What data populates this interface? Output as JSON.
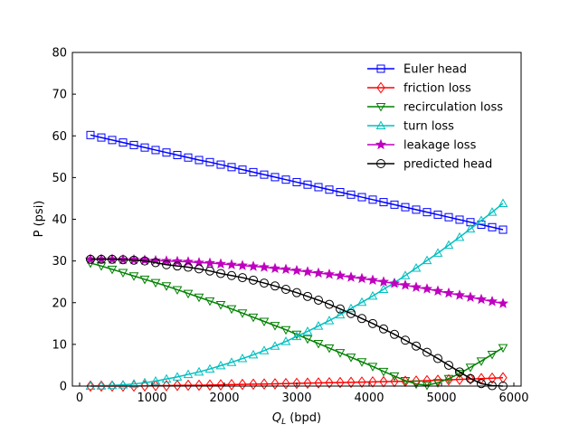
{
  "chart_data": {
    "type": "line",
    "xlabel_main": "Q",
    "xlabel_sub": "L",
    "xlabel_unit": " (bpd)",
    "ylabel": "P (psi)",
    "xlim": [
      -100,
      6100
    ],
    "ylim": [
      0,
      80
    ],
    "xticks": [
      0,
      1000,
      2000,
      3000,
      4000,
      5000,
      6000
    ],
    "yticks": [
      0,
      10,
      20,
      30,
      40,
      50,
      60,
      70,
      80
    ],
    "grid": false,
    "legend_position": "upper-right",
    "x": [
      150,
      300,
      450,
      600,
      750,
      900,
      1050,
      1200,
      1350,
      1500,
      1650,
      1800,
      1950,
      2100,
      2250,
      2400,
      2550,
      2700,
      2850,
      3000,
      3150,
      3300,
      3450,
      3600,
      3750,
      3900,
      4050,
      4200,
      4350,
      4500,
      4650,
      4800,
      4950,
      5100,
      5250,
      5400,
      5550,
      5700,
      5850
    ],
    "series": [
      {
        "name": "Euler head",
        "color": "#0000ff",
        "marker": "square",
        "values": [
          60.2,
          59.6,
          59.0,
          58.4,
          57.8,
          57.2,
          56.6,
          56.0,
          55.4,
          54.8,
          54.2,
          53.7,
          53.1,
          52.5,
          51.9,
          51.3,
          50.7,
          50.1,
          49.5,
          48.9,
          48.3,
          47.7,
          47.1,
          46.5,
          45.9,
          45.3,
          44.7,
          44.1,
          43.5,
          42.9,
          42.3,
          41.7,
          41.1,
          40.5,
          39.9,
          39.3,
          38.7,
          38.1,
          37.5
        ]
      },
      {
        "name": "friction loss",
        "color": "#ff0000",
        "marker": "diamond",
        "values": [
          0.0,
          0.0,
          0.0,
          0.0,
          0.0,
          0.05,
          0.1,
          0.1,
          0.15,
          0.2,
          0.2,
          0.25,
          0.3,
          0.35,
          0.4,
          0.45,
          0.5,
          0.55,
          0.6,
          0.65,
          0.7,
          0.75,
          0.8,
          0.85,
          0.9,
          0.95,
          1.0,
          1.05,
          1.1,
          1.15,
          1.2,
          1.3,
          1.4,
          1.5,
          1.6,
          1.7,
          1.8,
          1.9,
          2.0
        ]
      },
      {
        "name": "recirculation loss",
        "color": "#008000",
        "marker": "triangle-down",
        "values": [
          29.5,
          28.8,
          28.0,
          27.2,
          26.4,
          25.6,
          24.8,
          24.0,
          23.1,
          22.2,
          21.3,
          20.4,
          19.5,
          18.5,
          17.5,
          16.5,
          15.5,
          14.5,
          13.5,
          12.4,
          11.3,
          10.2,
          9.1,
          8.0,
          6.9,
          5.8,
          4.7,
          3.5,
          2.4,
          1.3,
          0.5,
          0.2,
          0.8,
          1.8,
          3.0,
          4.5,
          6.0,
          7.6,
          9.2
        ]
      },
      {
        "name": "turn loss",
        "color": "#00bfbf",
        "marker": "triangle-up",
        "values": [
          0.0,
          0.05,
          0.15,
          0.3,
          0.5,
          0.8,
          1.2,
          1.7,
          2.2,
          2.8,
          3.4,
          4.1,
          4.9,
          5.7,
          6.6,
          7.5,
          8.5,
          9.6,
          10.7,
          11.9,
          13.1,
          14.4,
          15.7,
          17.1,
          18.6,
          20.1,
          21.6,
          23.2,
          24.8,
          26.5,
          28.3,
          30.1,
          31.9,
          33.8,
          35.7,
          37.7,
          39.7,
          41.7,
          43.8
        ]
      },
      {
        "name": "leakage loss",
        "color": "#bf00bf",
        "marker": "star",
        "values": [
          30.4,
          30.4,
          30.4,
          30.3,
          30.3,
          30.2,
          30.1,
          30.0,
          29.9,
          29.8,
          29.6,
          29.5,
          29.3,
          29.1,
          28.9,
          28.7,
          28.5,
          28.2,
          28.0,
          27.7,
          27.4,
          27.1,
          26.8,
          26.5,
          26.1,
          25.8,
          25.4,
          25.0,
          24.6,
          24.2,
          23.7,
          23.3,
          22.8,
          22.3,
          21.8,
          21.3,
          20.8,
          20.3,
          19.8
        ]
      },
      {
        "name": "predicted head",
        "color": "#000000",
        "marker": "circle",
        "values": [
          30.4,
          30.4,
          30.4,
          30.3,
          30.2,
          30.0,
          29.6,
          29.1,
          28.8,
          28.5,
          28.1,
          27.6,
          27.0,
          26.5,
          26.0,
          25.4,
          24.7,
          24.0,
          23.2,
          22.4,
          21.5,
          20.6,
          19.6,
          18.5,
          17.4,
          16.2,
          15.0,
          13.7,
          12.4,
          11.0,
          9.6,
          8.1,
          6.6,
          5.0,
          3.4,
          1.8,
          0.6,
          0.1,
          0.0
        ]
      }
    ]
  }
}
